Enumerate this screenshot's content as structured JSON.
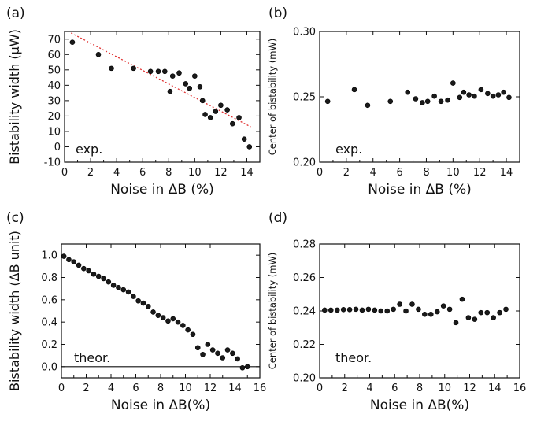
{
  "chart_data": [
    {
      "panel": "(a)",
      "type": "scatter",
      "xlabel": "Noise in ΔB (%)",
      "ylabel": "Bistability width (μW)",
      "annotation": "exp.",
      "xlim": [
        0,
        15
      ],
      "ylim": [
        -10,
        75
      ],
      "xticks": [
        "0",
        "2",
        "4",
        "6",
        "8",
        "10",
        "12",
        "14"
      ],
      "yticks": [
        "-10",
        "0",
        "10",
        "20",
        "30",
        "40",
        "50",
        "60",
        "70"
      ],
      "x": [
        0.6,
        2.6,
        3.6,
        5.3,
        6.6,
        7.2,
        7.7,
        8.1,
        8.3,
        8.8,
        9.3,
        9.6,
        10.0,
        10.4,
        10.6,
        10.8,
        11.2,
        11.6,
        12.0,
        12.5,
        12.9,
        13.4,
        13.8,
        14.2
      ],
      "y": [
        68,
        60,
        51,
        51,
        49,
        49,
        49,
        36,
        46,
        48,
        41,
        38,
        46,
        39,
        30,
        21,
        19,
        23,
        27,
        24,
        15,
        19,
        5,
        0
      ],
      "fit_line": {
        "x": [
          0.5,
          14.3
        ],
        "y": [
          74,
          13
        ],
        "style": "dotted",
        "color": "#e03030"
      }
    },
    {
      "panel": "(b)",
      "type": "scatter",
      "xlabel": "Noise in ΔB (%)",
      "ylabel": "Center of bistability (mW)",
      "annotation": "exp.",
      "xlim": [
        0,
        15
      ],
      "ylim": [
        0.2,
        0.3
      ],
      "xticks": [
        "0",
        "2",
        "4",
        "6",
        "8",
        "10",
        "12",
        "14"
      ],
      "yticks": [
        "0.20",
        "0.25",
        "0.30"
      ],
      "x": [
        0.6,
        2.6,
        3.6,
        5.3,
        6.6,
        7.2,
        7.7,
        8.1,
        8.6,
        9.1,
        9.6,
        10.0,
        10.5,
        10.8,
        11.2,
        11.6,
        12.1,
        12.6,
        13.0,
        13.4,
        13.8,
        14.2
      ],
      "y": [
        0.2465,
        0.2555,
        0.2435,
        0.2465,
        0.2535,
        0.2485,
        0.2455,
        0.2465,
        0.2505,
        0.2465,
        0.2475,
        0.2605,
        0.2495,
        0.2535,
        0.2515,
        0.2505,
        0.2555,
        0.2525,
        0.2505,
        0.2515,
        0.2535,
        0.2495
      ]
    },
    {
      "panel": "(c)",
      "type": "scatter",
      "xlabel": "Noise in ΔB(%)",
      "ylabel": "Bistability width (ΔB unit)",
      "annotation": "theor.",
      "xlim": [
        0,
        16
      ],
      "ylim": [
        -0.1,
        1.1
      ],
      "xticks": [
        "0",
        "2",
        "4",
        "6",
        "8",
        "10",
        "12",
        "14",
        "16"
      ],
      "yticks": [
        "0.0",
        "0.2",
        "0.4",
        "0.6",
        "0.8",
        "1.0"
      ],
      "hline": 0,
      "x": [
        0.2,
        0.6,
        1.0,
        1.4,
        1.8,
        2.2,
        2.6,
        3.0,
        3.4,
        3.8,
        4.2,
        4.6,
        5.0,
        5.4,
        5.8,
        6.2,
        6.6,
        7.0,
        7.4,
        7.8,
        8.2,
        8.6,
        9.0,
        9.4,
        9.8,
        10.2,
        10.6,
        11.0,
        11.4,
        11.8,
        12.2,
        12.6,
        13.0,
        13.4,
        13.8,
        14.2,
        14.6,
        15.0
      ],
      "y": [
        0.99,
        0.96,
        0.94,
        0.91,
        0.88,
        0.86,
        0.83,
        0.81,
        0.79,
        0.76,
        0.73,
        0.71,
        0.69,
        0.67,
        0.63,
        0.59,
        0.57,
        0.54,
        0.49,
        0.46,
        0.44,
        0.41,
        0.43,
        0.4,
        0.37,
        0.33,
        0.29,
        0.17,
        0.11,
        0.2,
        0.15,
        0.12,
        0.08,
        0.15,
        0.12,
        0.07,
        -0.01,
        0.0
      ]
    },
    {
      "panel": "(d)",
      "type": "scatter",
      "xlabel": "Noise in ΔB(%)",
      "ylabel": "Center of bistability (mW)",
      "annotation": "theor.",
      "xlim": [
        0,
        16
      ],
      "ylim": [
        0.2,
        0.28
      ],
      "xticks": [
        "0",
        "2",
        "4",
        "6",
        "8",
        "10",
        "12",
        "14",
        "16"
      ],
      "yticks": [
        "0.20",
        "0.22",
        "0.24",
        "0.26",
        "0.28"
      ],
      "x": [
        0.4,
        0.9,
        1.4,
        1.9,
        2.4,
        2.9,
        3.4,
        3.9,
        4.4,
        4.9,
        5.4,
        5.9,
        6.4,
        6.9,
        7.4,
        7.9,
        8.4,
        8.9,
        9.4,
        9.9,
        10.4,
        10.9,
        11.4,
        11.9,
        12.4,
        12.9,
        13.4,
        13.9,
        14.4,
        14.9
      ],
      "y": [
        0.2405,
        0.2405,
        0.2405,
        0.2408,
        0.2408,
        0.241,
        0.2405,
        0.241,
        0.2405,
        0.24,
        0.24,
        0.241,
        0.244,
        0.24,
        0.244,
        0.241,
        0.238,
        0.238,
        0.2395,
        0.243,
        0.241,
        0.233,
        0.247,
        0.236,
        0.235,
        0.239,
        0.239,
        0.236,
        0.239,
        0.241
      ]
    }
  ]
}
